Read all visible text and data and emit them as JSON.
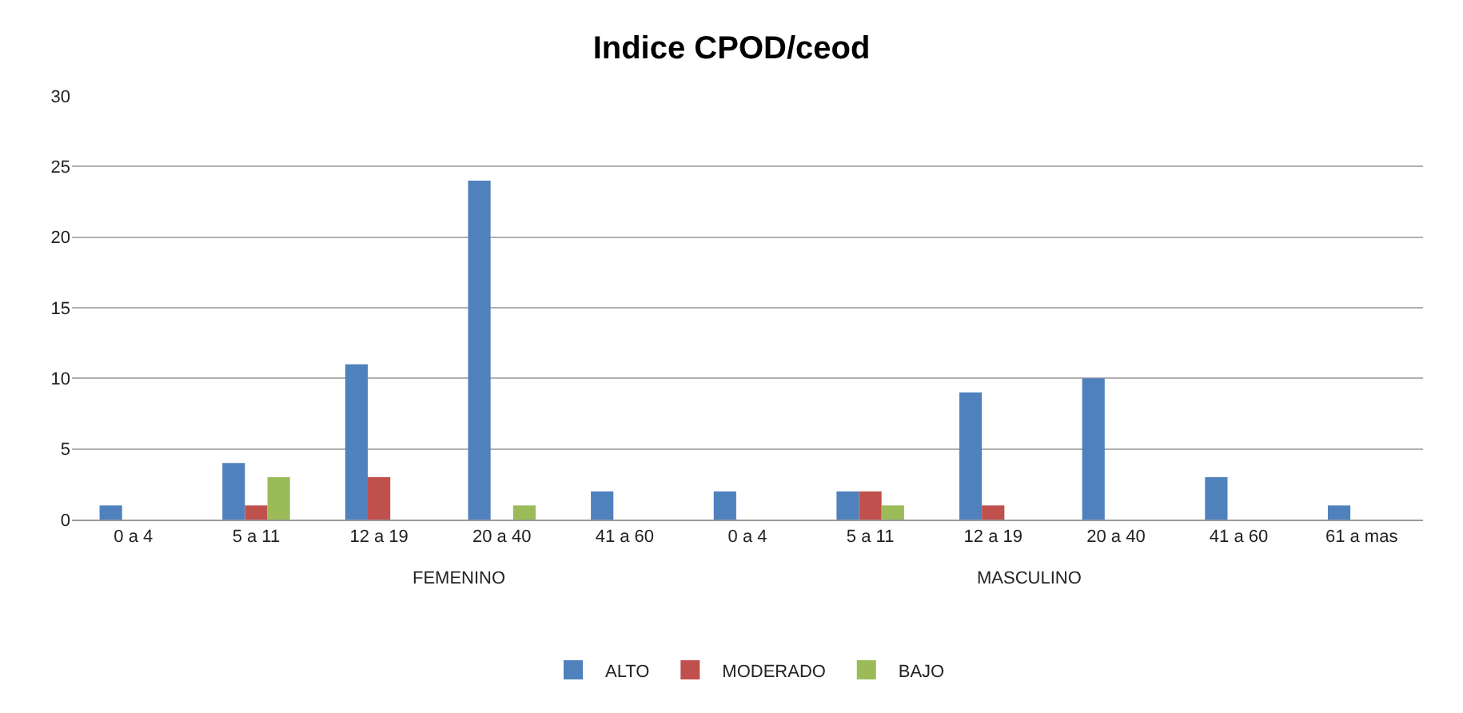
{
  "chart_data": {
    "type": "bar",
    "title": "Indice CPOD/ceod",
    "categories": [
      "0 a 4",
      "5 a 11",
      "12 a 19",
      "20 a 40",
      "41 a 60",
      "0 a 4",
      "5 a 11",
      "12 a 19",
      "20 a 40",
      "41 a 60",
      "61 a mas"
    ],
    "series": [
      {
        "name": "ALTO",
        "color": "#4f81bd",
        "values": [
          1,
          4,
          11,
          24,
          2,
          2,
          2,
          9,
          10,
          3,
          1
        ]
      },
      {
        "name": "MODERADO",
        "color": "#c0504d",
        "values": [
          0,
          1,
          3,
          0,
          0,
          0,
          2,
          1,
          0,
          0,
          0
        ]
      },
      {
        "name": "BAJO",
        "color": "#9bbb59",
        "values": [
          0,
          3,
          0,
          1,
          0,
          0,
          1,
          0,
          0,
          0,
          0
        ]
      }
    ],
    "annotations": [
      "FEMENINO",
      "MASCULINO"
    ],
    "ylim": [
      0,
      30
    ],
    "yticks": [
      0,
      5,
      10,
      15,
      20,
      25,
      30
    ],
    "grid": "y",
    "legend": "bottom"
  }
}
